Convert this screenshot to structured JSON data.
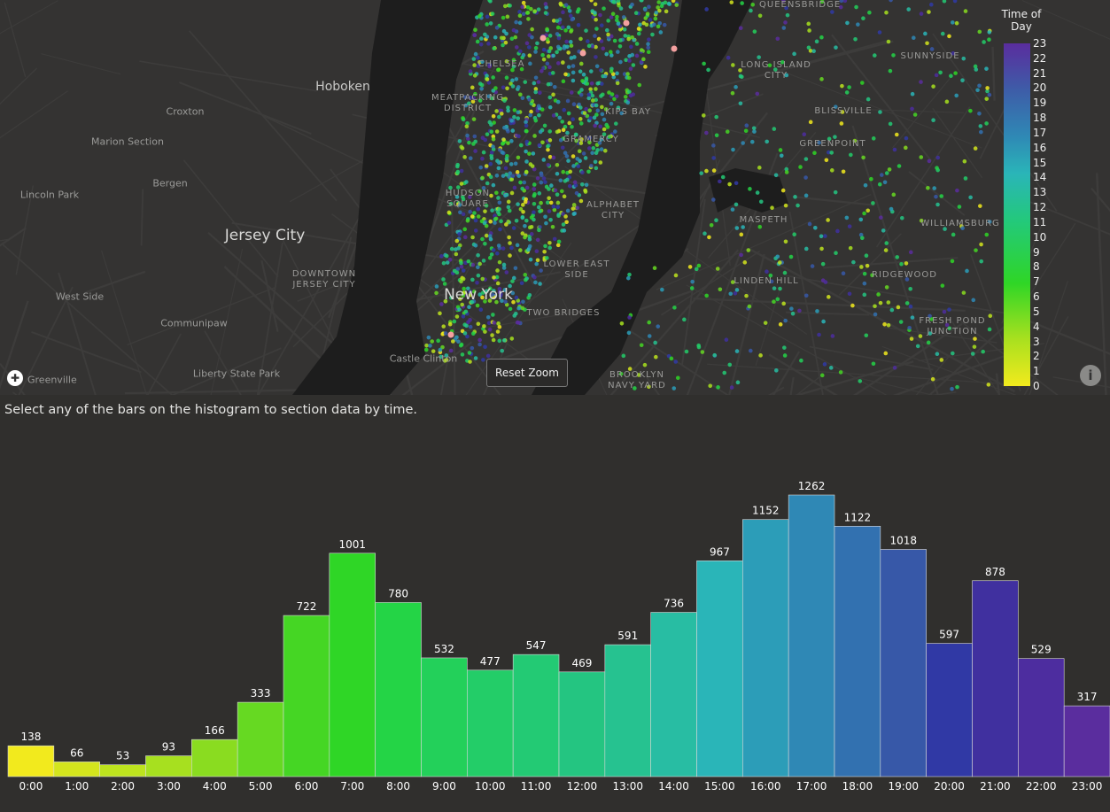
{
  "map": {
    "labels": [
      {
        "text": "Hoboken",
        "kind": "mid"
      },
      {
        "text": "Jersey City",
        "kind": "big"
      },
      {
        "text": "New York",
        "kind": "big"
      },
      {
        "text": "Croxton",
        "kind": "small"
      },
      {
        "text": "Marion Section",
        "kind": "small"
      },
      {
        "text": "Bergen",
        "kind": "small"
      },
      {
        "text": "Lincoln Park",
        "kind": "small"
      },
      {
        "text": "West Side",
        "kind": "small"
      },
      {
        "text": "Communipaw",
        "kind": "small"
      },
      {
        "text": "Liberty State Park",
        "kind": "small"
      },
      {
        "text": "Greenville",
        "kind": "small"
      },
      {
        "text": "Castle Clinton",
        "kind": "small"
      },
      {
        "text": "DOWNTOWN JERSEY CITY",
        "kind": "dist"
      },
      {
        "text": "CHELSEA",
        "kind": "dist"
      },
      {
        "text": "MEATPACKING DISTRICT",
        "kind": "dist"
      },
      {
        "text": "KIPS BAY",
        "kind": "dist"
      },
      {
        "text": "GRAMERCY",
        "kind": "dist"
      },
      {
        "text": "HUDSON SQUARE",
        "kind": "dist"
      },
      {
        "text": "ALPHABET CITY",
        "kind": "dist"
      },
      {
        "text": "LOWER EAST SIDE",
        "kind": "dist"
      },
      {
        "text": "TWO BRIDGES",
        "kind": "dist"
      },
      {
        "text": "BROOKLYN NAVY YARD",
        "kind": "dist"
      },
      {
        "text": "QUEENSBRIDGE",
        "kind": "dist"
      },
      {
        "text": "LONG ISLAND CITY",
        "kind": "dist"
      },
      {
        "text": "SUNNYSIDE",
        "kind": "dist"
      },
      {
        "text": "BLISSVILLE",
        "kind": "dist"
      },
      {
        "text": "GREENPOINT",
        "kind": "dist"
      },
      {
        "text": "MASPETH",
        "kind": "dist"
      },
      {
        "text": "WILLIAMSBURG",
        "kind": "dist"
      },
      {
        "text": "LINDEN HILL",
        "kind": "dist"
      },
      {
        "text": "RIDGEWOOD",
        "kind": "dist"
      },
      {
        "text": "FRESH POND JUNCTION",
        "kind": "dist"
      }
    ],
    "reset_zoom_label": "Reset Zoom",
    "info_icon": "info-icon",
    "logo_icon": "mapbox-logo-icon"
  },
  "legend": {
    "title": "Time of Day",
    "ticks": [
      "0",
      "1",
      "2",
      "3",
      "4",
      "5",
      "6",
      "7",
      "8",
      "9",
      "10",
      "11",
      "12",
      "13",
      "14",
      "15",
      "16",
      "17",
      "18",
      "19",
      "20",
      "21",
      "22",
      "23"
    ]
  },
  "instruction": "Select any of the bars on the histogram to section data by time.",
  "chart_data": {
    "type": "bar",
    "categories": [
      "0:00",
      "1:00",
      "2:00",
      "3:00",
      "4:00",
      "5:00",
      "6:00",
      "7:00",
      "8:00",
      "9:00",
      "10:00",
      "11:00",
      "12:00",
      "13:00",
      "14:00",
      "15:00",
      "16:00",
      "17:00",
      "18:00",
      "19:00",
      "20:00",
      "21:00",
      "22:00",
      "23:00"
    ],
    "values": [
      138,
      66,
      53,
      93,
      166,
      333,
      722,
      1001,
      780,
      532,
      477,
      547,
      469,
      591,
      736,
      967,
      1152,
      1262,
      1122,
      1018,
      597,
      878,
      529,
      317
    ],
    "colors": [
      "#f2ea1d",
      "#d4e51d",
      "#bde31e",
      "#a7e01f",
      "#8adc20",
      "#66d922",
      "#45d624",
      "#2fd626",
      "#24d446",
      "#23d05a",
      "#23cd68",
      "#23ca74",
      "#24c581",
      "#26c290",
      "#28bda3",
      "#2ab5b8",
      "#2c9db8",
      "#2f88b5",
      "#3271b0",
      "#3758a8",
      "#3039a5",
      "#40309f",
      "#4d2d9f",
      "#5a2d9e"
    ],
    "title": "",
    "xlabel": "",
    "ylabel": "",
    "ylim": [
      0,
      1262
    ],
    "data_labels": true,
    "grid": false
  }
}
